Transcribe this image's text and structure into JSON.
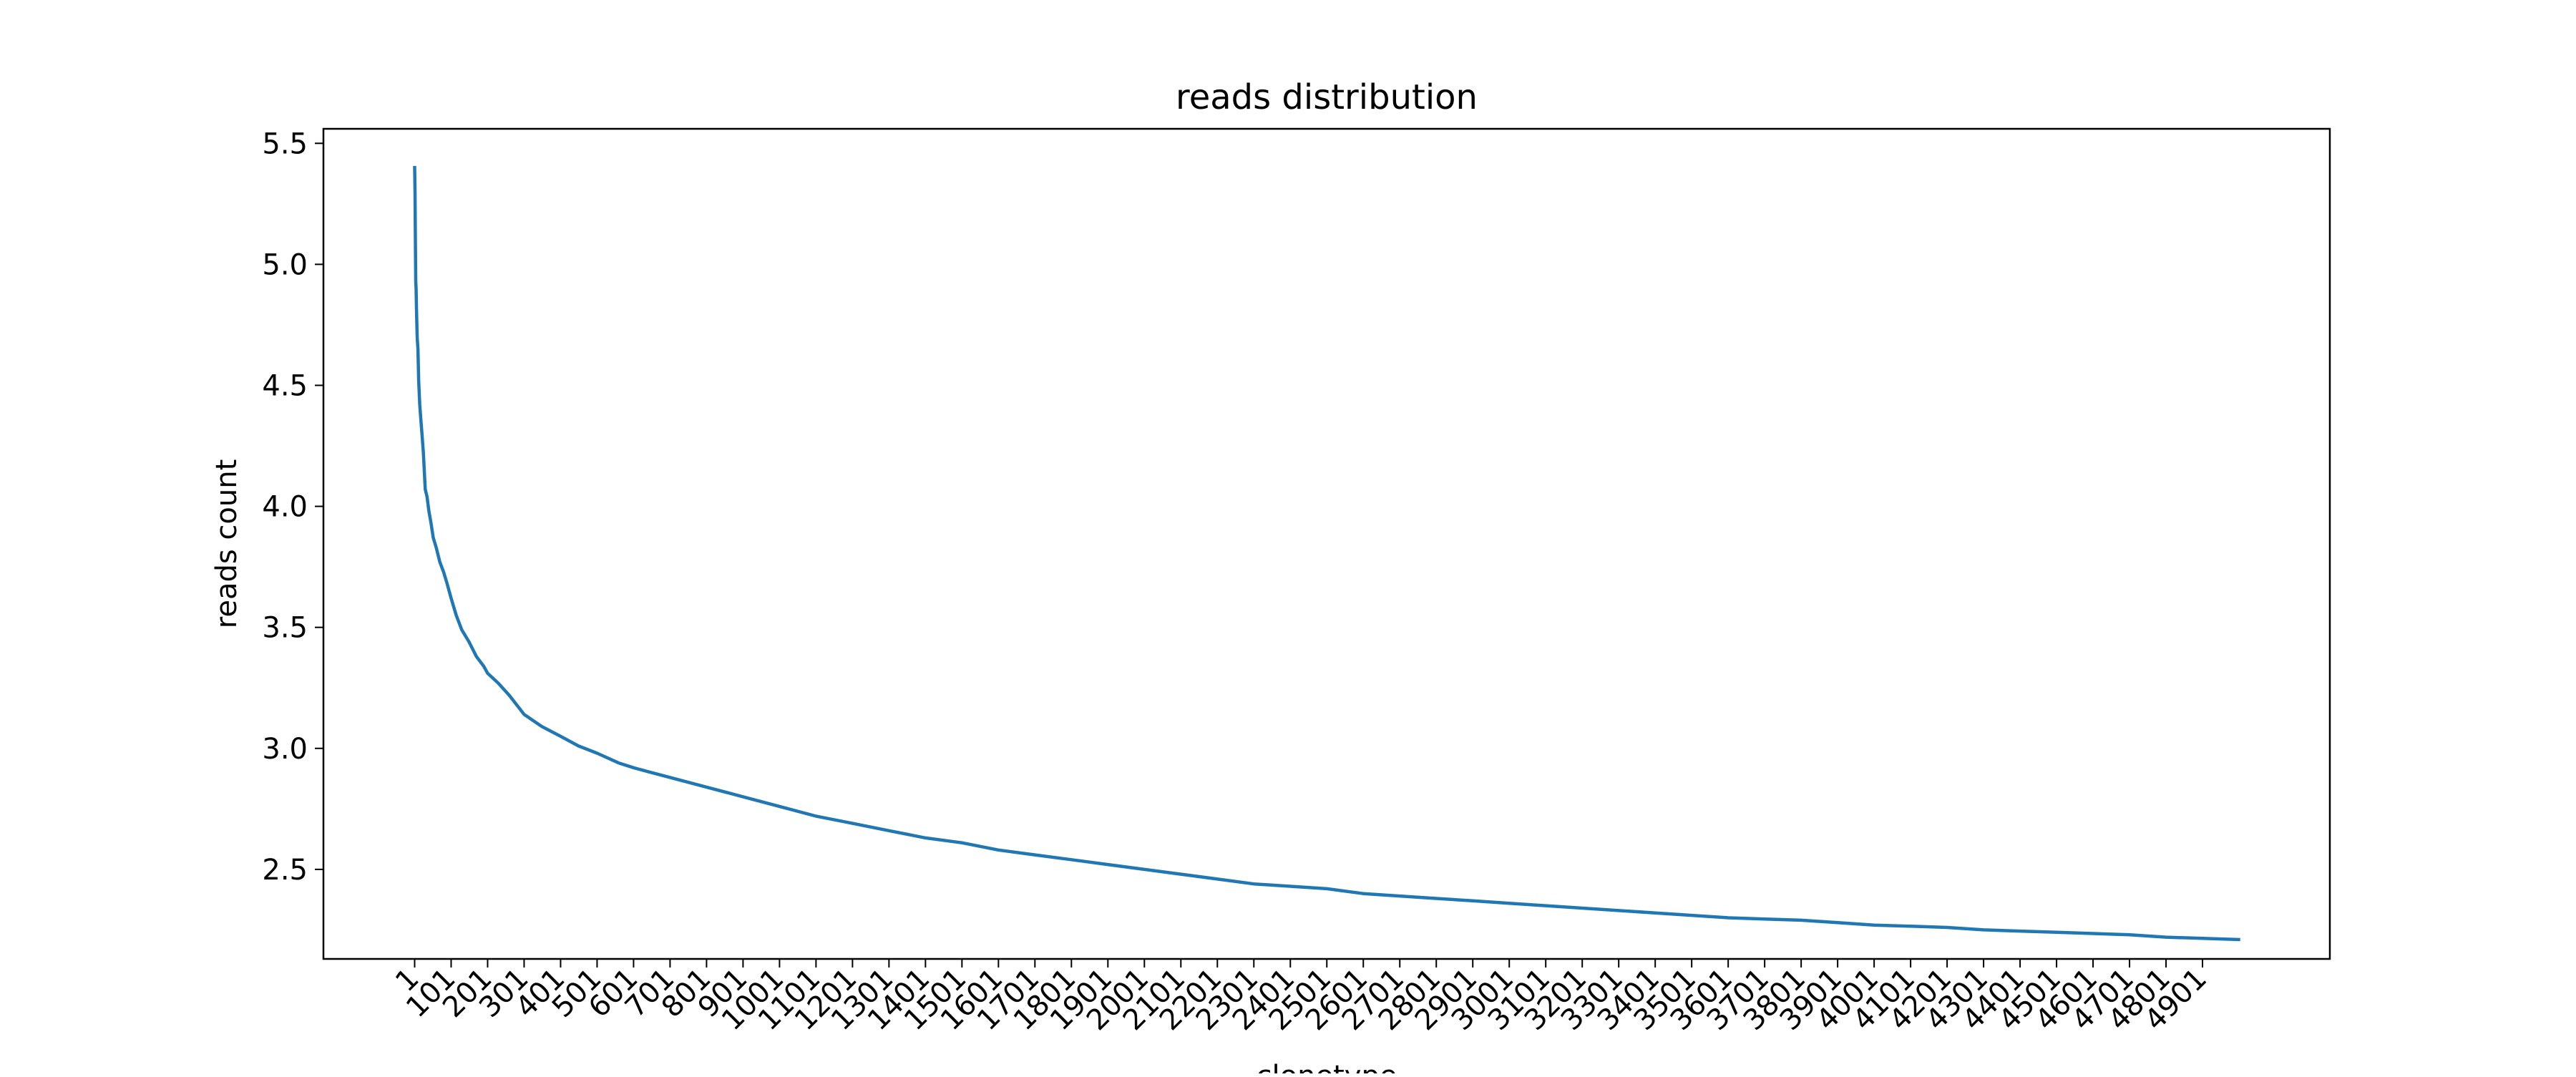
{
  "chart_data": {
    "type": "line",
    "title": "reads distribution",
    "xlabel": "clonetype",
    "ylabel": "reads count",
    "grid": false,
    "legend": "none",
    "xlim": [
      -249,
      5250
    ],
    "ylim": [
      2.13,
      5.56
    ],
    "x_ticks": [
      1,
      101,
      201,
      301,
      401,
      501,
      601,
      701,
      801,
      901,
      1001,
      1101,
      1201,
      1301,
      1401,
      1501,
      1601,
      1701,
      1801,
      1901,
      2001,
      2101,
      2201,
      2301,
      2401,
      2501,
      2601,
      2701,
      2801,
      2901,
      3001,
      3101,
      3201,
      3301,
      3401,
      3501,
      3601,
      3701,
      3801,
      3901,
      4001,
      4101,
      4201,
      4301,
      4401,
      4501,
      4601,
      4701,
      4801,
      4901
    ],
    "y_ticks": [
      2.5,
      3.0,
      3.5,
      4.0,
      4.5,
      5.0,
      5.5
    ],
    "y_tick_labels": [
      "2.5",
      "3.0",
      "3.5",
      "4.0",
      "4.5",
      "5.0",
      "5.5"
    ],
    "series": [
      {
        "color": "#1f77b4",
        "x": [
          1,
          2,
          3,
          4,
          5,
          6,
          8,
          10,
          12,
          15,
          18,
          21,
          25,
          30,
          35,
          40,
          46,
          52,
          60,
          70,
          80,
          90,
          101,
          115,
          130,
          150,
          170,
          190,
          201,
          230,
          260,
          301,
          350,
          401,
          450,
          501,
          560,
          601,
          650,
          701,
          801,
          901,
          1001,
          1101,
          1201,
          1301,
          1401,
          1501,
          1601,
          1701,
          1801,
          1901,
          2001,
          2101,
          2201,
          2301,
          2401,
          2501,
          2601,
          2701,
          2801,
          2901,
          3001,
          3101,
          3201,
          3301,
          3401,
          3501,
          3601,
          3701,
          3801,
          3901,
          4001,
          4101,
          4201,
          4301,
          4401,
          4501,
          4601,
          4701,
          4801,
          4901,
          5000
        ],
        "values": [
          5.4,
          5.3,
          5.1,
          4.93,
          4.9,
          4.82,
          4.7,
          4.65,
          4.52,
          4.42,
          4.36,
          4.3,
          4.22,
          4.07,
          4.04,
          3.98,
          3.93,
          3.87,
          3.83,
          3.77,
          3.73,
          3.68,
          3.62,
          3.55,
          3.49,
          3.44,
          3.38,
          3.34,
          3.31,
          3.27,
          3.22,
          3.14,
          3.09,
          3.05,
          3.01,
          2.98,
          2.94,
          2.92,
          2.9,
          2.88,
          2.84,
          2.8,
          2.76,
          2.72,
          2.69,
          2.66,
          2.63,
          2.61,
          2.58,
          2.56,
          2.54,
          2.52,
          2.5,
          2.48,
          2.46,
          2.44,
          2.43,
          2.42,
          2.4,
          2.39,
          2.38,
          2.37,
          2.36,
          2.35,
          2.34,
          2.33,
          2.32,
          2.31,
          2.3,
          2.295,
          2.29,
          2.28,
          2.27,
          2.265,
          2.26,
          2.25,
          2.245,
          2.24,
          2.235,
          2.23,
          2.22,
          2.215,
          2.21
        ]
      }
    ]
  }
}
